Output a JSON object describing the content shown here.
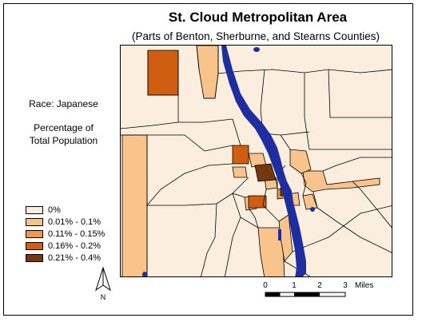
{
  "title": "St. Cloud Metropolitan Area",
  "subtitle": "(Parts of Benton, Sherburne, and Stearns Counties)",
  "race_label": "Race: Japanese",
  "measure_label_line1": "Percentage of",
  "measure_label_line2": "Total Population",
  "legend": [
    {
      "label": "0%",
      "color": "#fbeedf"
    },
    {
      "label": "0.01% - 0.1%",
      "color": "#f9c48c"
    },
    {
      "label": "0.11% - 0.15%",
      "color": "#f3974a"
    },
    {
      "label": "0.16% - 0.2%",
      "color": "#cf5e10"
    },
    {
      "label": "0.21% - 0.4%",
      "color": "#74380f"
    }
  ],
  "scale": {
    "ticks": [
      "0",
      "1",
      "2",
      "3"
    ],
    "unit": "Miles"
  },
  "north_label": "N",
  "water_color": "#1e2da0"
}
